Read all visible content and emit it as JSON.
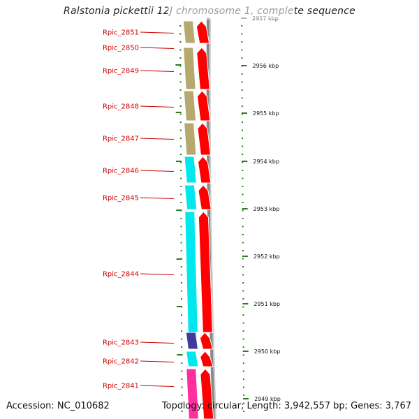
{
  "title": "Ralstonia pickettii 12J chromosome 1, complete sequence",
  "footer": {
    "accession": "Accession: NC_010682",
    "topology": "Topology: circular; Length: 3,942,557 bp; Genes: 3,767"
  },
  "colors": {
    "gene_label": "#cc0000",
    "cds_arrow": "#ff0000",
    "kbp_tick": "#2a7a1e",
    "backbone": "#888888",
    "cog_colors": [
      "#b5a96e",
      "#00e8ee",
      "#3f3aa0",
      "#ff2fa0"
    ]
  },
  "genes": [
    {
      "label": "Rpic_2851"
    },
    {
      "label": "Rpic_2850"
    },
    {
      "label": "Rpic_2849"
    },
    {
      "label": "Rpic_2848"
    },
    {
      "label": "Rpic_2847"
    },
    {
      "label": "Rpic_2846"
    },
    {
      "label": "Rpic_2845"
    },
    {
      "label": "Rpic_2844"
    },
    {
      "label": "Rpic_2843"
    },
    {
      "label": "Rpic_2842"
    },
    {
      "label": "Rpic_2841"
    }
  ],
  "scale": [
    {
      "label": "2957 kbp"
    },
    {
      "label": "2956 kbp"
    },
    {
      "label": "2955 kbp"
    },
    {
      "label": "2954 kbp"
    },
    {
      "label": "2953 kbp"
    },
    {
      "label": "2952 kbp"
    },
    {
      "label": "2951 kbp"
    },
    {
      "label": "2950 kbp"
    },
    {
      "label": "2949 kbp"
    }
  ]
}
